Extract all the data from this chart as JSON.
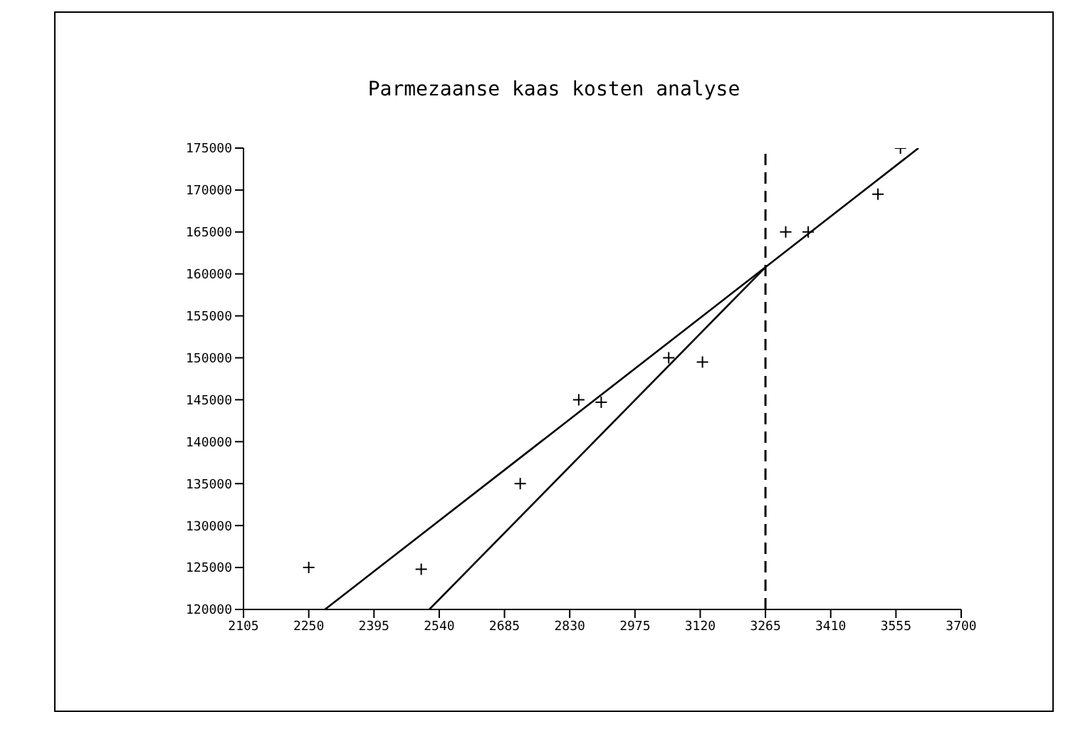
{
  "chart_data": {
    "type": "scatter",
    "title": "Parmezaanse kaas kosten analyse",
    "xlim": [
      2105,
      3700
    ],
    "xticks": [
      2105,
      2250,
      2395,
      2540,
      2685,
      2830,
      2975,
      3120,
      3265,
      3410,
      3555,
      3700
    ],
    "ylim": [
      120000,
      175000
    ],
    "yticks": [
      120000,
      125000,
      130000,
      135000,
      140000,
      145000,
      150000,
      155000,
      160000,
      165000,
      170000,
      175000
    ],
    "marker": "cross",
    "series": [
      {
        "color": "#000000",
        "x": [
          2250,
          2500,
          2720,
          2850,
          2900,
          3050,
          3125,
          3310,
          3360,
          3515,
          3565
        ],
        "values": [
          125000,
          124800,
          135000,
          145000,
          144700,
          150000,
          149500,
          165000,
          165000,
          169500,
          175000
        ]
      },
      {
        "type": "line",
        "color": "#000000",
        "marker": "none",
        "x": [
          2286,
          3265,
          3605
        ],
        "values": [
          120000,
          160800,
          175000
        ]
      },
      {
        "type": "line",
        "color": "#000000",
        "marker": "none",
        "x": [
          2518,
          3265
        ],
        "values": [
          120000,
          160800
        ]
      }
    ],
    "ref_lines": [
      {
        "axis": "x",
        "value": 3265,
        "line_style": "dashed",
        "color": "#000000"
      }
    ]
  }
}
